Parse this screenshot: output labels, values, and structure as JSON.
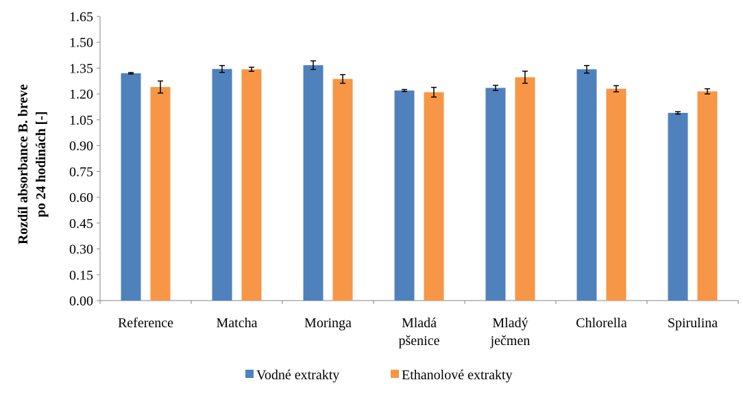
{
  "chart_data": {
    "type": "bar",
    "title": "",
    "xlabel": "",
    "ylabel_lines": [
      "Rozdíl absorbance B. breve",
      "po 24 hodinách [-]"
    ],
    "ylim": [
      0,
      1.65
    ],
    "yticks": [
      "0.00",
      "0.15",
      "0.30",
      "0.45",
      "0.60",
      "0.75",
      "0.90",
      "1.05",
      "1.20",
      "1.35",
      "1.50",
      "1.65"
    ],
    "grid": false,
    "legend_position": "bottom",
    "categories": [
      [
        "Reference"
      ],
      [
        "Matcha"
      ],
      [
        "Moringa"
      ],
      [
        "Mladá",
        "pšenice"
      ],
      [
        "Mladý",
        "ječmen"
      ],
      [
        "Chlorella"
      ],
      [
        "Spirulina"
      ]
    ],
    "series": [
      {
        "name": "Vodné extrakty",
        "color": "#4f81bd",
        "values": [
          1.32,
          1.345,
          1.367,
          1.22,
          1.235,
          1.343,
          1.09
        ],
        "errors": [
          0.004,
          0.02,
          0.025,
          0.006,
          0.015,
          0.022,
          0.007
        ]
      },
      {
        "name": "Ethanolové extrakty",
        "color": "#f79646",
        "values": [
          1.24,
          1.343,
          1.287,
          1.21,
          1.297,
          1.23,
          1.215
        ],
        "errors": [
          0.035,
          0.012,
          0.025,
          0.028,
          0.035,
          0.018,
          0.015
        ]
      }
    ]
  }
}
